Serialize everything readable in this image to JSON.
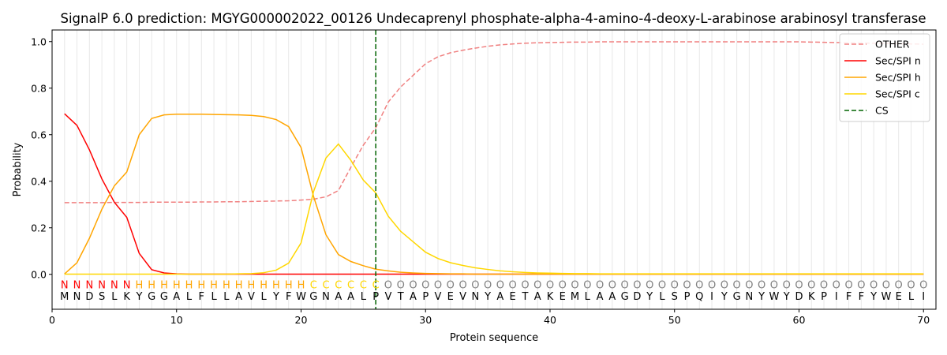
{
  "chart_data": {
    "type": "line",
    "title": "SignalP 6.0 prediction: MGYG000002022_00126 Undecaprenyl phosphate-alpha-4-amino-4-deoxy-L-arabinose arabinosyl transferase",
    "xlabel": "Protein sequence",
    "ylabel": "Probability",
    "xlim": [
      0,
      71
    ],
    "ylim": [
      -0.15,
      1.05
    ],
    "xticks": [
      0,
      10,
      20,
      30,
      40,
      50,
      60,
      70
    ],
    "yticks": [
      0.0,
      0.2,
      0.4,
      0.6,
      0.8,
      1.0
    ],
    "ytick_labels": [
      "0.0",
      "0.2",
      "0.4",
      "0.6",
      "0.8",
      "1.0"
    ],
    "grid": "vertical lines at each residue",
    "legend_position": "top-right",
    "cleavage_site": 26,
    "sequence": "MNDSLKYGGALFLLAVLYFWGNAALPVTAPVEVNYAETAKEMLAAGDYLSPQIYGNYWYDKPIFFYWELI",
    "labels": "NNNNNNHHHHHHHHHHHHHHCCCCCCOOOOOOOOOOOOOOOOOOOOOOOOOOOOOOOOOOOOOOOOOOOO",
    "label_colors": {
      "N": "#ff0000",
      "H": "#ffa500",
      "C": "#ffd700",
      "O": "#808080"
    },
    "series": [
      {
        "name": "OTHER",
        "color": "#f08080",
        "dash": true,
        "values": [
          0.308,
          0.308,
          0.308,
          0.308,
          0.309,
          0.309,
          0.309,
          0.31,
          0.31,
          0.31,
          0.31,
          0.311,
          0.311,
          0.312,
          0.312,
          0.313,
          0.314,
          0.315,
          0.316,
          0.319,
          0.323,
          0.333,
          0.36,
          0.46,
          0.555,
          0.63,
          0.74,
          0.805,
          0.855,
          0.905,
          0.935,
          0.952,
          0.963,
          0.972,
          0.98,
          0.986,
          0.99,
          0.993,
          0.995,
          0.996,
          0.997,
          0.998,
          0.998,
          0.999,
          0.999,
          0.999,
          0.999,
          0.999,
          0.999,
          0.999,
          0.999,
          0.999,
          0.999,
          0.999,
          0.999,
          0.999,
          0.999,
          0.999,
          0.999,
          0.999,
          0.998,
          0.997,
          0.996,
          0.995,
          0.994,
          0.993,
          0.992,
          0.991,
          0.99,
          0.989
        ]
      },
      {
        "name": "Sec/SPI n",
        "color": "#ff0000",
        "dash": false,
        "values": [
          0.69,
          0.64,
          0.535,
          0.41,
          0.31,
          0.245,
          0.09,
          0.02,
          0.006,
          0.002,
          0.001,
          0.001,
          0.001,
          0.001,
          0.001,
          0.001,
          0.001,
          0.001,
          0.001,
          0.001,
          0.001,
          0.001,
          0.001,
          0.001,
          0.001,
          0.001,
          0.001,
          0.001,
          0.001,
          0.001,
          0.001,
          0.001,
          0.001,
          0.001,
          0.001,
          0.001,
          0.001,
          0.001,
          0.001,
          0.001,
          0.001,
          0.001,
          0.001,
          0.001,
          0.001,
          0.001,
          0.001,
          0.001,
          0.001,
          0.001,
          0.001,
          0.001,
          0.001,
          0.001,
          0.001,
          0.001,
          0.001,
          0.001,
          0.001,
          0.001,
          0.001,
          0.001,
          0.001,
          0.001,
          0.001,
          0.001,
          0.001,
          0.001,
          0.001,
          0.001
        ]
      },
      {
        "name": "Sec/SPI h",
        "color": "#ffa500",
        "dash": false,
        "values": [
          0.002,
          0.05,
          0.155,
          0.28,
          0.38,
          0.44,
          0.6,
          0.67,
          0.685,
          0.688,
          0.688,
          0.688,
          0.687,
          0.686,
          0.685,
          0.683,
          0.678,
          0.665,
          0.635,
          0.545,
          0.335,
          0.17,
          0.085,
          0.055,
          0.037,
          0.022,
          0.015,
          0.009,
          0.006,
          0.004,
          0.003,
          0.002,
          0.002,
          0.001,
          0.001,
          0.001,
          0.001,
          0.001,
          0.001,
          0.001,
          0.001,
          0.001,
          0.001,
          0.001,
          0.001,
          0.001,
          0.001,
          0.001,
          0.001,
          0.001,
          0.001,
          0.001,
          0.001,
          0.001,
          0.001,
          0.001,
          0.001,
          0.001,
          0.001,
          0.001,
          0.001,
          0.001,
          0.001,
          0.001,
          0.001,
          0.001,
          0.001,
          0.001,
          0.001,
          0.001
        ]
      },
      {
        "name": "Sec/SPI c",
        "color": "#ffd700",
        "dash": false,
        "values": [
          0.001,
          0.001,
          0.001,
          0.001,
          0.001,
          0.001,
          0.001,
          0.001,
          0.001,
          0.001,
          0.001,
          0.001,
          0.001,
          0.001,
          0.002,
          0.003,
          0.007,
          0.018,
          0.048,
          0.135,
          0.355,
          0.5,
          0.56,
          0.49,
          0.405,
          0.35,
          0.25,
          0.185,
          0.14,
          0.095,
          0.068,
          0.05,
          0.038,
          0.028,
          0.021,
          0.015,
          0.011,
          0.008,
          0.006,
          0.005,
          0.004,
          0.003,
          0.003,
          0.002,
          0.002,
          0.002,
          0.002,
          0.002,
          0.002,
          0.002,
          0.002,
          0.002,
          0.002,
          0.002,
          0.002,
          0.002,
          0.002,
          0.002,
          0.002,
          0.002,
          0.002,
          0.002,
          0.002,
          0.002,
          0.002,
          0.002,
          0.002,
          0.002,
          0.002,
          0.002
        ]
      }
    ],
    "legend": [
      {
        "name": "OTHER",
        "color": "#f08080",
        "dash": true
      },
      {
        "name": "Sec/SPI n",
        "color": "#ff0000",
        "dash": false
      },
      {
        "name": "Sec/SPI h",
        "color": "#ffa500",
        "dash": false
      },
      {
        "name": "Sec/SPI c",
        "color": "#ffd700",
        "dash": false
      },
      {
        "name": "CS",
        "color": "#006400",
        "dash": true
      }
    ]
  }
}
